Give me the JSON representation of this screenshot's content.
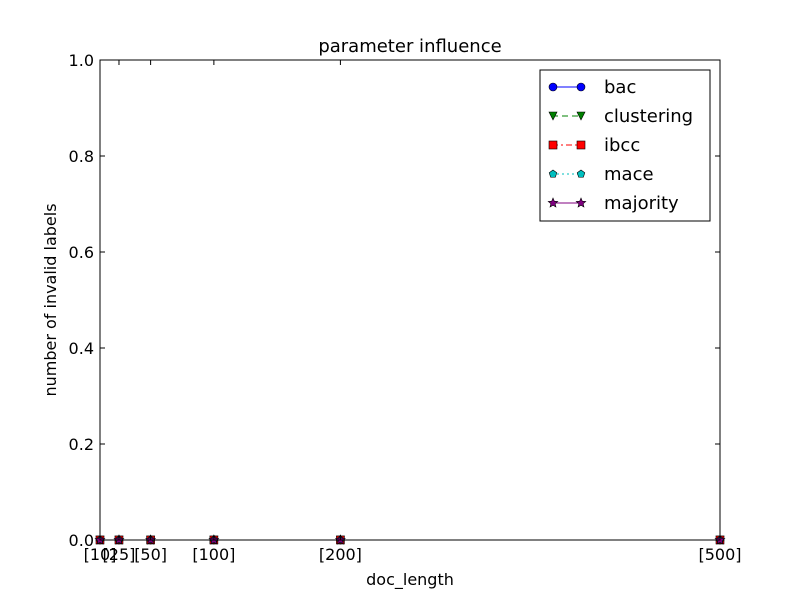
{
  "chart_data": {
    "type": "line",
    "title": "parameter influence",
    "xlabel": "doc_length",
    "ylabel": "number of invalid labels",
    "x": [
      10,
      25,
      50,
      100,
      200,
      500
    ],
    "xtick_labels": [
      "[10]",
      "[25]",
      "[50]",
      "[100]",
      "[200]",
      "[500]"
    ],
    "xlim": [
      10,
      500
    ],
    "ylim": [
      0,
      1
    ],
    "ytick_labels": [
      "0.0",
      "0.2",
      "0.4",
      "0.6",
      "0.8",
      "1.0"
    ],
    "grid": false,
    "legend_position": "top-right",
    "series": [
      {
        "name": "bac",
        "values": [
          0,
          0,
          0,
          0,
          0,
          0
        ],
        "color": "#0000ff",
        "marker": "circle",
        "linestyle": "solid"
      },
      {
        "name": "clustering",
        "values": [
          0,
          0,
          0,
          0,
          0,
          0
        ],
        "color": "#008000",
        "marker": "triangle-down",
        "linestyle": "dashed"
      },
      {
        "name": "ibcc",
        "values": [
          0,
          0,
          0,
          0,
          0,
          0
        ],
        "color": "#ff0000",
        "marker": "square",
        "linestyle": "dashdot"
      },
      {
        "name": "mace",
        "values": [
          0,
          0,
          0,
          0,
          0,
          0
        ],
        "color": "#00bfbf",
        "marker": "pentagon",
        "linestyle": "dotted"
      },
      {
        "name": "majority",
        "values": [
          0,
          0,
          0,
          0,
          0,
          0
        ],
        "color": "#800080",
        "marker": "star",
        "linestyle": "solid"
      }
    ]
  }
}
